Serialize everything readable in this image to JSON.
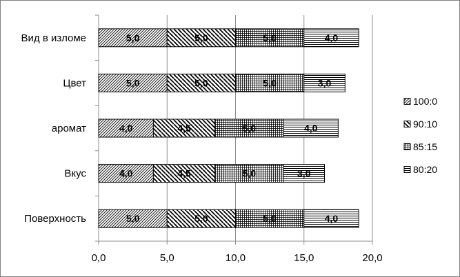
{
  "chart_data": {
    "type": "bar",
    "orientation": "horizontal",
    "stacked": true,
    "categories": [
      "Поверхность",
      "Вкус",
      "аромат",
      "Цвет",
      "Вид в изломе"
    ],
    "series": [
      {
        "name": "100:0",
        "values": [
          5.0,
          4.0,
          4.0,
          5.0,
          5.0
        ],
        "labels": [
          "5,0",
          "4,0",
          "4,0",
          "5,0",
          "5,0"
        ]
      },
      {
        "name": "90:10",
        "values": [
          5.0,
          4.5,
          4.5,
          5.0,
          5.0
        ],
        "labels": [
          "5,0",
          "4,5",
          "4,5",
          "5,0",
          "5,0"
        ]
      },
      {
        "name": "85:15",
        "values": [
          5.0,
          5.0,
          5.0,
          5.0,
          5.0
        ],
        "labels": [
          "5,0",
          "5,0",
          "5,0",
          "5,0",
          "5,0"
        ]
      },
      {
        "name": "80:20",
        "values": [
          4.0,
          3.0,
          4.0,
          3.0,
          4.0
        ],
        "labels": [
          "4,0",
          "3,0",
          "4,0",
          "3,0",
          "4,0"
        ]
      }
    ],
    "xlim": [
      0,
      20
    ],
    "xticks": [
      "0,0",
      "5,0",
      "10,0",
      "15,0",
      "20,0"
    ],
    "grid": "vertical-major",
    "legend": "right",
    "title": "",
    "xlabel": "",
    "ylabel": ""
  }
}
